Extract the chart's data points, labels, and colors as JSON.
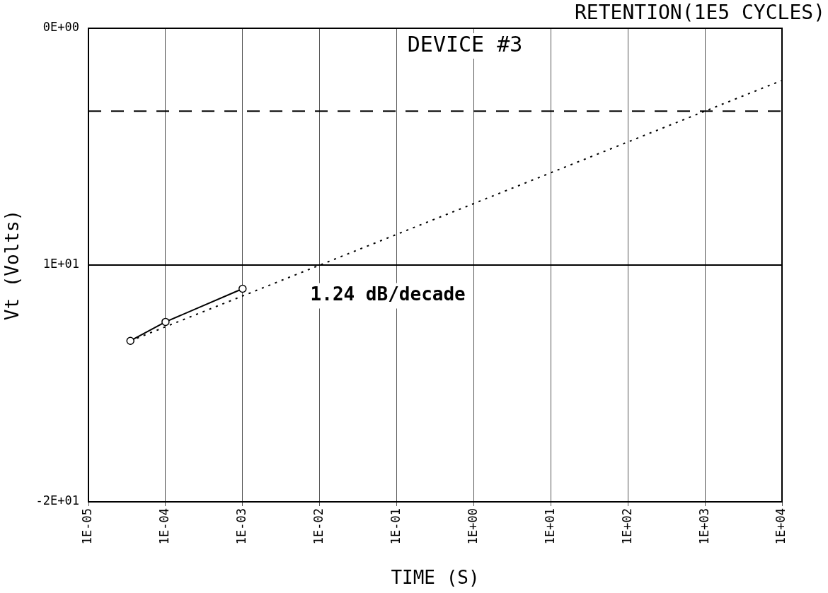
{
  "chart_data": {
    "type": "line",
    "title": "RETENTION(1E5 CYCLES)",
    "xlabel": "TIME (S)",
    "ylabel": "Vt (Volts)",
    "annotations": [
      "DEVICE #3",
      "1.24 dB/decade"
    ],
    "log": "x",
    "grid": "x",
    "legend": false,
    "xlim": [
      1e-05,
      10000
    ],
    "xticks": [
      {
        "value": 1e-05,
        "label": "1E-05"
      },
      {
        "value": 0.0001,
        "label": "1E-04"
      },
      {
        "value": 0.001,
        "label": "1E-03"
      },
      {
        "value": 0.01,
        "label": "1E-02"
      },
      {
        "value": 0.1,
        "label": "1E-01"
      },
      {
        "value": 1,
        "label": "1E+00"
      },
      {
        "value": 10,
        "label": "1E+01"
      },
      {
        "value": 100,
        "label": "1E+02"
      },
      {
        "value": 1000,
        "label": "1E+03"
      },
      {
        "value": 10000,
        "label": "1E+04"
      }
    ],
    "ylim": [
      -20,
      0
    ],
    "yticks": [
      {
        "value": -20,
        "label": "-2E+01"
      },
      {
        "value": -10,
        "label": "1E+01"
      },
      {
        "value": 0,
        "label": "0E+00"
      }
    ],
    "ref_lines": [
      {
        "axis": "y",
        "value": -3.5,
        "line_style": "dashed",
        "color": "#000000"
      },
      {
        "axis": "y",
        "value": -10,
        "line_style": "solid",
        "color": "#000000"
      }
    ],
    "series": [
      {
        "color": "#000000",
        "x": [
          3.5e-05,
          0.0001,
          0.001
        ],
        "values": [
          -13.2,
          -12.4,
          -11.0
        ],
        "marker": "circle",
        "line_style": "solid"
      },
      {
        "color": "#000000",
        "x": [
          3.5e-05,
          10000
        ],
        "values": [
          -13.2,
          -2.2
        ],
        "marker": "none",
        "line_style": "dotted"
      }
    ]
  }
}
